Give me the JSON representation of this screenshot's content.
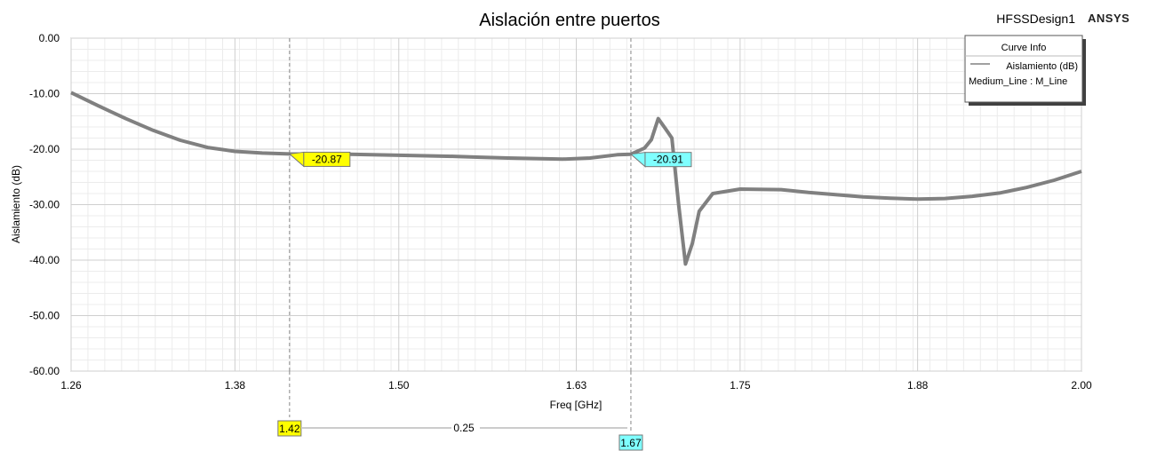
{
  "header": {
    "design_name": "HFSSDesign1",
    "brand": "ANSYS"
  },
  "legend": {
    "title": "Curve Info",
    "entries": [
      {
        "label": "Aislamiento (dB)",
        "sub": "Medium_Line : M_Line"
      }
    ]
  },
  "chart_data": {
    "type": "line",
    "title": "Aislación entre puertos",
    "xlabel": "Freq [GHz]",
    "ylabel": "Aislamiento (dB)",
    "xlim": [
      1.26,
      2.0
    ],
    "ylim": [
      -60,
      0
    ],
    "x_ticks": [
      {
        "value": 1.26,
        "label": "1.26"
      },
      {
        "value": 1.38,
        "label": "1.38"
      },
      {
        "value": 1.5,
        "label": "1.50"
      },
      {
        "value": 1.63,
        "label": "1.63"
      },
      {
        "value": 1.75,
        "label": "1.75"
      },
      {
        "value": 1.88,
        "label": "1.88"
      },
      {
        "value": 2.0,
        "label": "2.00"
      }
    ],
    "y_ticks": [
      {
        "value": 0,
        "label": "0.00"
      },
      {
        "value": -10,
        "label": "-10.00"
      },
      {
        "value": -20,
        "label": "-20.00"
      },
      {
        "value": -30,
        "label": "-30.00"
      },
      {
        "value": -40,
        "label": "-40.00"
      },
      {
        "value": -50,
        "label": "-50.00"
      },
      {
        "value": -60,
        "label": "-60.00"
      }
    ],
    "grid": true,
    "legend_position": "top-right",
    "series": [
      {
        "name": "Aislamiento (dB)",
        "color": "#808080",
        "x": [
          1.26,
          1.28,
          1.3,
          1.32,
          1.34,
          1.36,
          1.38,
          1.4,
          1.42,
          1.44,
          1.46,
          1.48,
          1.5,
          1.52,
          1.54,
          1.56,
          1.58,
          1.6,
          1.62,
          1.64,
          1.66,
          1.67,
          1.68,
          1.685,
          1.69,
          1.695,
          1.7,
          1.705,
          1.71,
          1.715,
          1.72,
          1.73,
          1.75,
          1.78,
          1.8,
          1.82,
          1.84,
          1.86,
          1.88,
          1.9,
          1.92,
          1.94,
          1.96,
          1.98,
          2.0
        ],
        "y": [
          -9.8,
          -12.2,
          -14.5,
          -16.6,
          -18.4,
          -19.7,
          -20.4,
          -20.7,
          -20.87,
          -20.9,
          -20.9,
          -21.0,
          -21.1,
          -21.2,
          -21.3,
          -21.45,
          -21.6,
          -21.7,
          -21.8,
          -21.6,
          -21.0,
          -20.91,
          -19.8,
          -18.3,
          -14.5,
          -16.2,
          -18.0,
          -30.0,
          -40.7,
          -37.0,
          -31.2,
          -28.0,
          -27.2,
          -27.3,
          -27.8,
          -28.2,
          -28.6,
          -28.85,
          -29.0,
          -28.9,
          -28.5,
          -27.9,
          -26.9,
          -25.6,
          -24.0
        ]
      }
    ],
    "markers": [
      {
        "id": "m1",
        "x": 1.42,
        "x_label": "1.42",
        "y_label": "-20.87",
        "color": "#ffff00"
      },
      {
        "id": "m2",
        "x": 1.67,
        "x_label": "1.67",
        "y_label": "-20.91",
        "color": "#7fffff"
      }
    ],
    "marker_delta": "0.25"
  }
}
